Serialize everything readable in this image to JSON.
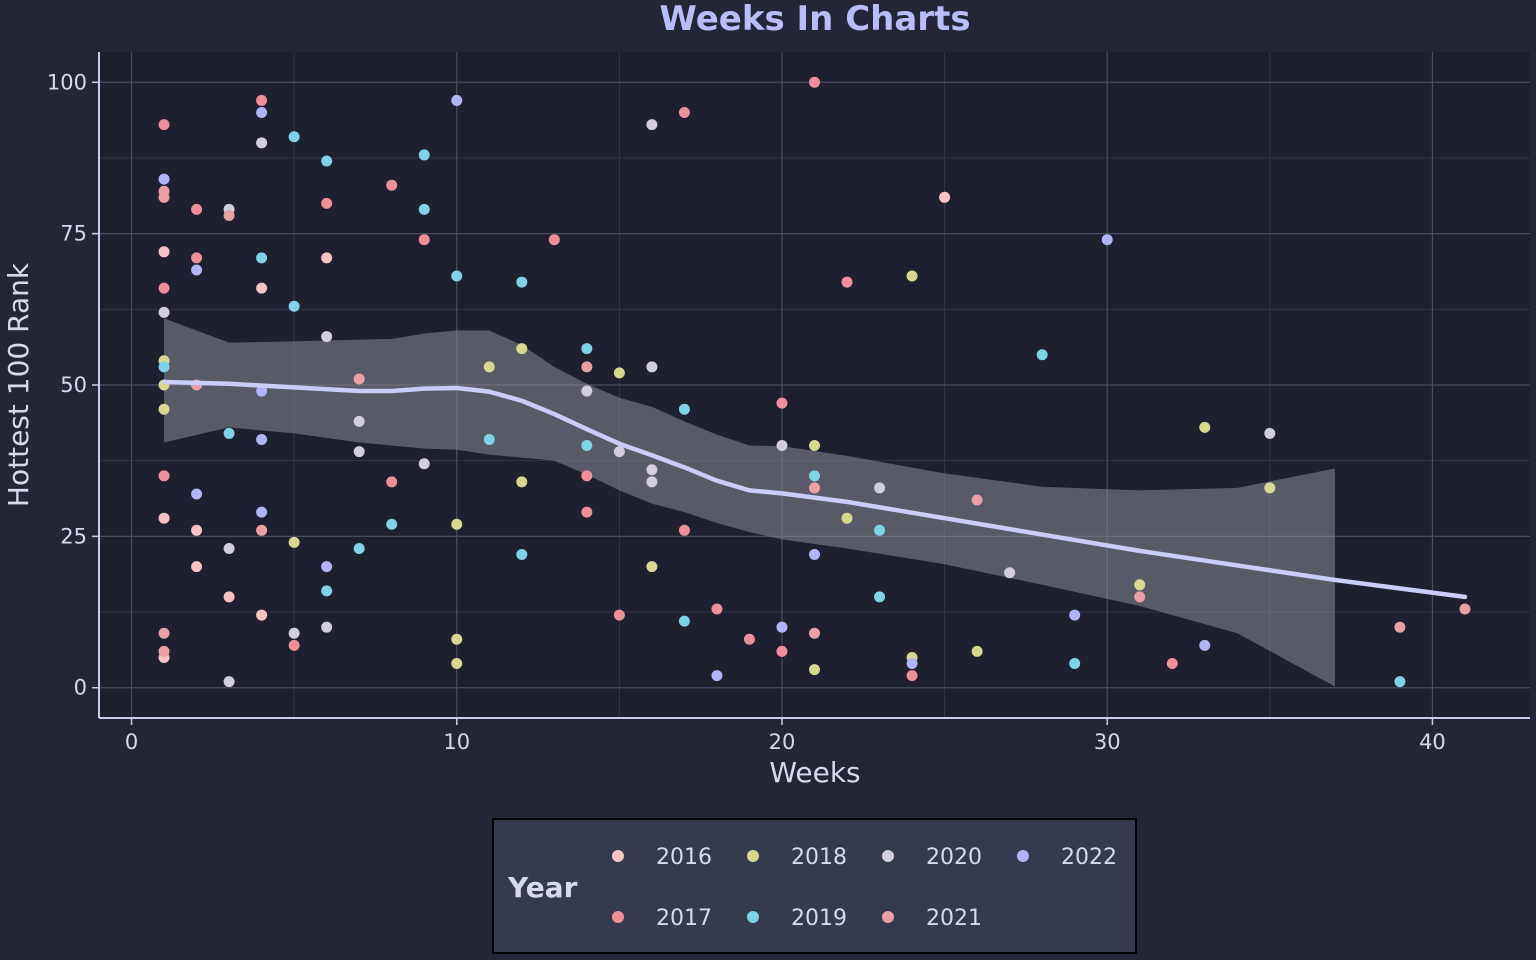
{
  "chart_data": {
    "type": "scatter",
    "title": "Weeks In Charts",
    "xlabel": "Weeks",
    "ylabel": "Hottest 100 Rank",
    "xlim": [
      -1,
      43
    ],
    "ylim": [
      -5,
      105
    ],
    "xticks": [
      "0",
      "10",
      "20",
      "30",
      "40"
    ],
    "yticks": [
      "0",
      "25",
      "50",
      "75",
      "100"
    ],
    "grid": true,
    "legend_position": "bottom",
    "legend_title": "Year",
    "colors": {
      "background": "#242638",
      "panel": "#1e1f2f",
      "grid_major": "#4a4c62",
      "grid_minor": "#34364a",
      "text": "#d6d9f0",
      "title": "#b9bdf8",
      "axis_line": "#c8ccf0",
      "smooth_line": "#c9cdf7",
      "confidence_band": "#8a8a96",
      "legend_box": "#353a4f"
    },
    "series": [
      {
        "name": "2016",
        "color": "#f6c2c4",
        "x": [
          1,
          1,
          1,
          2,
          2,
          3,
          4,
          4,
          6,
          25
        ],
        "y": [
          72,
          5,
          28,
          26,
          20,
          15,
          66,
          12,
          71,
          81
        ]
      },
      {
        "name": "2017",
        "color": "#ee8f99",
        "x": [
          1,
          1,
          1,
          2,
          2,
          4,
          5,
          6,
          8,
          8,
          9,
          13,
          14,
          14,
          15,
          17,
          17,
          18,
          19,
          20,
          20,
          21,
          22,
          24,
          32
        ],
        "y": [
          93,
          66,
          35,
          79,
          71,
          97,
          7,
          80,
          83,
          34,
          74,
          74,
          35,
          29,
          12,
          95,
          26,
          13,
          8,
          47,
          6,
          100,
          67,
          2,
          4
        ]
      },
      {
        "name": "2018",
        "color": "#d9d890",
        "x": [
          1,
          1,
          1,
          5,
          10,
          10,
          10,
          11,
          12,
          12,
          15,
          16,
          21,
          21,
          22,
          24,
          24,
          26,
          31,
          33,
          35
        ],
        "y": [
          54,
          50,
          46,
          24,
          27,
          8,
          4,
          53,
          56,
          34,
          52,
          20,
          40,
          3,
          28,
          68,
          5,
          6,
          17,
          43,
          33
        ]
      },
      {
        "name": "2019",
        "color": "#7fd3e6",
        "x": [
          1,
          3,
          4,
          5,
          5,
          6,
          6,
          7,
          8,
          9,
          9,
          10,
          11,
          12,
          12,
          14,
          14,
          17,
          17,
          21,
          23,
          23,
          28,
          29,
          39
        ],
        "y": [
          53,
          42,
          71,
          91,
          63,
          87,
          16,
          23,
          27,
          88,
          79,
          68,
          41,
          67,
          22,
          56,
          40,
          46,
          11,
          35,
          26,
          15,
          55,
          4,
          1
        ]
      },
      {
        "name": "2020",
        "color": "#d3cde0",
        "x": [
          1,
          3,
          3,
          3,
          4,
          5,
          6,
          6,
          7,
          7,
          9,
          14,
          15,
          16,
          16,
          16,
          16,
          20,
          23,
          27,
          35
        ],
        "y": [
          62,
          79,
          23,
          1,
          90,
          9,
          58,
          10,
          44,
          39,
          37,
          49,
          39,
          93,
          53,
          36,
          34,
          40,
          33,
          19,
          42
        ]
      },
      {
        "name": "2021",
        "color": "#e9a0a7",
        "x": [
          1,
          1,
          1,
          1,
          2,
          3,
          4,
          7,
          14,
          21,
          21,
          26,
          31,
          39,
          41
        ],
        "y": [
          82,
          81,
          9,
          6,
          50,
          78,
          26,
          51,
          53,
          33,
          9,
          31,
          15,
          10,
          13
        ]
      },
      {
        "name": "2022",
        "color": "#b1b4f6",
        "x": [
          1,
          2,
          2,
          4,
          4,
          4,
          4,
          6,
          10,
          18,
          20,
          21,
          24,
          29,
          30,
          33
        ],
        "y": [
          84,
          69,
          32,
          95,
          49,
          41,
          29,
          20,
          97,
          2,
          10,
          22,
          4,
          12,
          74,
          7
        ]
      }
    ],
    "smooth": {
      "x": [
        1,
        3,
        5,
        7,
        8,
        9,
        10,
        11,
        12,
        13,
        14,
        15,
        16,
        17,
        18,
        19,
        20,
        22,
        25,
        28,
        31,
        34,
        37,
        41
      ],
      "y": [
        50.5,
        50.2,
        49.6,
        49,
        49,
        49.4,
        49.5,
        48.9,
        47.4,
        45.2,
        42.7,
        40.3,
        38.4,
        36.4,
        34.2,
        32.6,
        32.1,
        30.7,
        28,
        25.3,
        22.6,
        20.2,
        17.8,
        15
      ],
      "lower": [
        40.5,
        43,
        42,
        40.5,
        40,
        39.5,
        39.3,
        38.5,
        38,
        37.5,
        35.2,
        32.6,
        30.4,
        29,
        27.2,
        25.7,
        24.5,
        23,
        20.4,
        17,
        13.5,
        9,
        0.2,
        null
      ],
      "upper": [
        61,
        57,
        57.2,
        57.5,
        57.6,
        58.5,
        59,
        59,
        56.6,
        53,
        50.2,
        47.9,
        46.4,
        44,
        41.8,
        40,
        39.9,
        38.3,
        35.4,
        33.2,
        32.6,
        33,
        36.2,
        null
      ]
    }
  }
}
